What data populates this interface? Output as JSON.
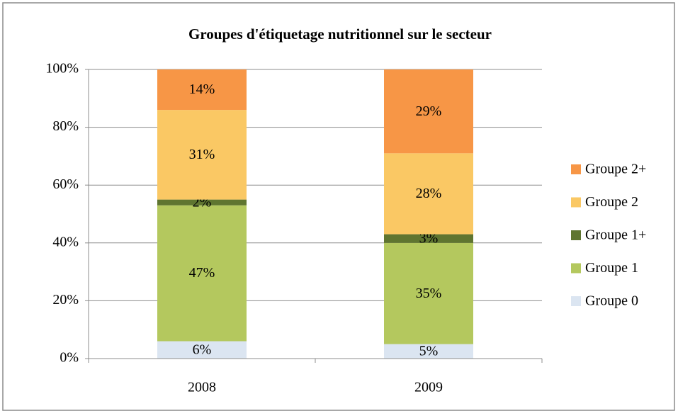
{
  "chart_data": {
    "type": "stacked_bar",
    "title": "Groupes d'étiquetage nutritionnel sur le secteur",
    "categories": [
      "2008",
      "2009"
    ],
    "series": [
      {
        "name": "Groupe 0",
        "color": "#dbe5f1",
        "values": [
          6,
          5
        ],
        "value_labels": [
          "6%",
          "5%"
        ]
      },
      {
        "name": "Groupe 1",
        "color": "#b4c85e",
        "values": [
          47,
          35
        ],
        "value_labels": [
          "47%",
          "35%"
        ]
      },
      {
        "name": "Groupe 1+",
        "color": "#5f7530",
        "values": [
          2,
          3
        ],
        "value_labels": [
          "2%",
          "3%"
        ]
      },
      {
        "name": "Groupe 2",
        "color": "#fac864",
        "values": [
          31,
          28
        ],
        "value_labels": [
          "31%",
          "28%"
        ]
      },
      {
        "name": "Groupe 2+",
        "color": "#f79646",
        "values": [
          14,
          29
        ],
        "value_labels": [
          "14%",
          "29%"
        ]
      }
    ],
    "ylim": [
      0,
      100
    ],
    "yticks": [
      {
        "value": 0,
        "label": "0%"
      },
      {
        "value": 20,
        "label": "20%"
      },
      {
        "value": 40,
        "label": "40%"
      },
      {
        "value": 60,
        "label": "60%"
      },
      {
        "value": 80,
        "label": "80%"
      },
      {
        "value": 100,
        "label": "100%"
      }
    ],
    "grid": true,
    "legend": "right"
  }
}
